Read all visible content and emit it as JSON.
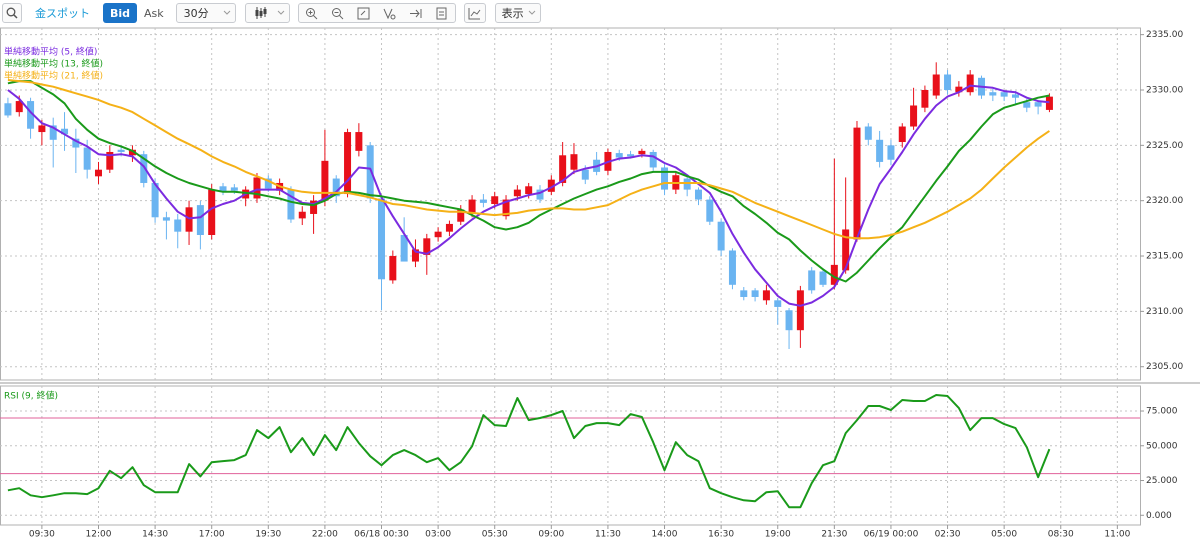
{
  "toolbar": {
    "instrument": "金スポット",
    "bid": "Bid",
    "ask": "Ask",
    "interval": "30分",
    "display": "表示"
  },
  "chart_data": [
    {
      "type": "candlestick",
      "up_color": "#e8101a",
      "down_color": "#6ab4f1",
      "ohlc": {
        "open": [
          2328.8,
          2328.0,
          2329.0,
          2326.2,
          2326.8,
          2326.5,
          2325.6,
          2324.8,
          2322.2,
          2322.8,
          2324.6,
          2324.1,
          2324.2,
          2321.6,
          2318.5,
          2318.3,
          2317.2,
          2319.6,
          2316.9,
          2321.3,
          2321.2,
          2320.2,
          2320.2,
          2322.0,
          2320.9,
          2321.0,
          2318.4,
          2318.8,
          2320.0,
          2322.0,
          2320.6,
          2324.5,
          2325.0,
          2320.2,
          2312.8,
          2316.9,
          2314.5,
          2315.1,
          2316.7,
          2317.2,
          2318.1,
          2318.8,
          2320.1,
          2319.7,
          2318.6,
          2320.4,
          2320.6,
          2321.0,
          2320.8,
          2321.6,
          2322.8,
          2322.8,
          2323.7,
          2322.7,
          2324.3,
          2324.2,
          2324.2,
          2324.4,
          2323.0,
          2321.0,
          2322.0,
          2321.0,
          2320.1,
          2318.1,
          2315.5,
          2311.9,
          2311.9,
          2311.0,
          2311.0,
          2310.1,
          2308.3,
          2313.7,
          2313.6,
          2312.4,
          2313.7,
          2316.5,
          2326.7,
          2325.5,
          2325.0,
          2325.3,
          2326.7,
          2328.4,
          2329.5,
          2331.4,
          2329.8,
          2329.8,
          2331.1,
          2329.8,
          2329.8,
          2329.6,
          2328.9,
          2328.9,
          2328.2
        ],
        "high": [
          2329.3,
          2329.5,
          2329.3,
          2327.3,
          2327.5,
          2328.0,
          2326.5,
          2325.5,
          2323.5,
          2325.0,
          2325.0,
          2325.0,
          2324.5,
          2322.0,
          2319.0,
          2318.8,
          2320.0,
          2320.0,
          2321.5,
          2321.6,
          2321.5,
          2321.3,
          2322.5,
          2322.3,
          2322.0,
          2321.3,
          2319.5,
          2320.5,
          2326.4,
          2322.3,
          2326.5,
          2327.0,
          2325.3,
          2320.5,
          2315.5,
          2318.5,
          2316.5,
          2317.0,
          2317.6,
          2318.2,
          2319.6,
          2320.5,
          2320.6,
          2320.8,
          2320.5,
          2321.4,
          2321.6,
          2321.4,
          2322.3,
          2325.3,
          2325.2,
          2323.2,
          2324.4,
          2324.7,
          2324.6,
          2324.5,
          2324.7,
          2324.6,
          2323.3,
          2322.6,
          2322.3,
          2321.2,
          2320.4,
          2318.3,
          2315.7,
          2312.2,
          2312.1,
          2312.4,
          2311.2,
          2310.3,
          2312.3,
          2314.0,
          2313.9,
          2323.8,
          2322.1,
          2327.2,
          2327.0,
          2326.3,
          2325.5,
          2327.0,
          2330.2,
          2330.4,
          2332.5,
          2331.8,
          2330.8,
          2331.8,
          2331.3,
          2330.1,
          2330.0,
          2329.9,
          2329.2,
          2329.1,
          2329.7
        ],
        "low": [
          2327.5,
          2327.6,
          2325.6,
          2325.0,
          2323.0,
          2324.5,
          2322.5,
          2322.0,
          2321.5,
          2322.5,
          2324.0,
          2323.5,
          2321.2,
          2318.0,
          2316.5,
          2315.7,
          2316.0,
          2315.6,
          2316.5,
          2320.5,
          2320.6,
          2319.5,
          2319.8,
          2320.8,
          2320.5,
          2318.0,
          2317.8,
          2317.0,
          2319.5,
          2319.8,
          2320.3,
          2324.0,
          2319.8,
          2310.1,
          2312.5,
          2314.8,
          2314.0,
          2313.3,
          2316.3,
          2316.8,
          2317.8,
          2318.5,
          2319.4,
          2319.3,
          2318.3,
          2320.0,
          2320.2,
          2319.8,
          2320.5,
          2321.3,
          2322.4,
          2321.5,
          2322.3,
          2322.3,
          2323.6,
          2323.8,
          2323.9,
          2322.7,
          2320.5,
          2320.6,
          2320.4,
          2319.6,
          2317.8,
          2315.0,
          2312.0,
          2311.0,
          2310.9,
          2310.6,
          2308.8,
          2306.6,
          2306.7,
          2311.6,
          2312.2,
          2312.0,
          2313.4,
          2316.3,
          2325.0,
          2323.0,
          2323.2,
          2324.8,
          2326.4,
          2328.0,
          2329.2,
          2329.6,
          2329.4,
          2329.5,
          2329.2,
          2329.0,
          2329.0,
          2328.7,
          2328.0,
          2327.8,
          2328.0
        ],
        "close": [
          2327.7,
          2329.0,
          2326.5,
          2326.8,
          2325.5,
          2326.0,
          2324.8,
          2322.8,
          2322.8,
          2324.4,
          2324.4,
          2324.6,
          2321.6,
          2318.5,
          2318.2,
          2317.2,
          2319.4,
          2316.9,
          2321.0,
          2320.8,
          2320.9,
          2321.0,
          2322.1,
          2321.1,
          2321.6,
          2318.3,
          2319.0,
          2320.0,
          2323.6,
          2320.4,
          2326.2,
          2326.2,
          2320.2,
          2312.9,
          2315.0,
          2314.5,
          2315.6,
          2316.6,
          2317.2,
          2317.9,
          2319.2,
          2320.1,
          2319.8,
          2320.4,
          2320.1,
          2321.0,
          2321.3,
          2320.1,
          2321.9,
          2324.1,
          2324.2,
          2321.9,
          2322.6,
          2324.4,
          2323.9,
          2324.0,
          2324.5,
          2323.0,
          2321.0,
          2322.3,
          2321.0,
          2320.1,
          2318.1,
          2315.5,
          2312.4,
          2311.3,
          2311.3,
          2311.9,
          2310.4,
          2308.3,
          2311.9,
          2311.9,
          2312.4,
          2314.2,
          2317.4,
          2326.6,
          2325.5,
          2323.5,
          2323.7,
          2326.7,
          2328.6,
          2330.0,
          2331.4,
          2330.0,
          2330.3,
          2331.4,
          2329.5,
          2329.5,
          2329.4,
          2329.3,
          2328.4,
          2328.5,
          2329.4
        ]
      },
      "series": [
        {
          "name": "単純移動平均 (5, 終値)",
          "color": "#7b2be0",
          "values": [
            2330.0,
            2329.2,
            2328.0,
            2327.0,
            2326.6,
            2326.0,
            2325.4,
            2324.9,
            2324.2,
            2324.1,
            2324.2,
            2324.0,
            2323.1,
            2321.5,
            2320.2,
            2319.0,
            2318.4,
            2318.5,
            2319.3,
            2319.7,
            2320.0,
            2320.6,
            2321.0,
            2321.0,
            2321.0,
            2320.4,
            2319.8,
            2319.7,
            2320.2,
            2320.8,
            2321.8,
            2323.0,
            2322.9,
            2320.3,
            2318.6,
            2317.0,
            2315.4,
            2315.2,
            2315.8,
            2316.6,
            2317.5,
            2318.3,
            2319.0,
            2319.5,
            2319.9,
            2320.2,
            2320.5,
            2320.7,
            2321.2,
            2321.8,
            2322.6,
            2322.9,
            2323.1,
            2323.5,
            2323.8,
            2323.9,
            2324.1,
            2324.0,
            2323.4,
            2323.0,
            2322.3,
            2321.5,
            2320.7,
            2319.0,
            2317.0,
            2315.3,
            2313.8,
            2312.6,
            2311.4,
            2310.7,
            2310.5,
            2310.8,
            2311.4,
            2312.2,
            2313.9,
            2316.6,
            2319.2,
            2321.5,
            2322.9,
            2324.4,
            2326.0,
            2327.4,
            2328.6,
            2329.4,
            2329.8,
            2330.4,
            2330.3,
            2330.2,
            2329.9,
            2329.8,
            2329.3,
            2329.0,
            2328.9
          ]
        },
        {
          "name": "単純移動平均 (13, 終値)",
          "color": "#1a9a1a",
          "values": [
            2330.6,
            2330.8,
            2330.8,
            2330.2,
            2329.6,
            2328.8,
            2327.4,
            2326.4,
            2325.6,
            2325.2,
            2324.9,
            2324.5,
            2323.8,
            2323.1,
            2322.5,
            2322.0,
            2321.6,
            2321.3,
            2321.0,
            2320.8,
            2320.8,
            2320.7,
            2320.6,
            2320.4,
            2320.2,
            2319.9,
            2319.7,
            2319.6,
            2320.0,
            2320.6,
            2320.8,
            2320.7,
            2320.5,
            2320.4,
            2320.2,
            2320.0,
            2319.9,
            2319.8,
            2319.6,
            2319.4,
            2319.2,
            2318.7,
            2318.2,
            2317.6,
            2317.4,
            2317.6,
            2318.0,
            2318.7,
            2319.2,
            2319.7,
            2320.2,
            2320.6,
            2321.0,
            2321.3,
            2321.7,
            2322.0,
            2322.4,
            2322.6,
            2322.6,
            2322.6,
            2322.2,
            2321.9,
            2321.3,
            2320.8,
            2320.4,
            2319.5,
            2318.8,
            2318.0,
            2317.1,
            2316.5,
            2315.5,
            2314.6,
            2313.8,
            2313.1,
            2312.7,
            2313.5,
            2314.6,
            2315.7,
            2316.7,
            2317.6,
            2319.0,
            2320.4,
            2321.8,
            2323.1,
            2324.5,
            2325.5,
            2326.7,
            2327.8,
            2328.4,
            2328.7,
            2329.0,
            2329.3,
            2329.5
          ]
        },
        {
          "name": "単純移動平均 (21, 終値)",
          "color": "#f5b117",
          "values": [
            2330.9,
            2330.8,
            2330.7,
            2330.5,
            2330.3,
            2330.0,
            2329.7,
            2329.4,
            2329.1,
            2328.7,
            2328.4,
            2328.0,
            2327.4,
            2326.8,
            2326.2,
            2325.6,
            2325.1,
            2324.6,
            2324.0,
            2323.5,
            2323.1,
            2322.6,
            2322.2,
            2321.8,
            2321.3,
            2321.0,
            2320.8,
            2320.7,
            2320.7,
            2320.7,
            2320.7,
            2320.5,
            2320.3,
            2320.0,
            2319.7,
            2319.6,
            2319.4,
            2319.2,
            2319.1,
            2319.0,
            2319.0,
            2318.9,
            2318.8,
            2318.7,
            2318.8,
            2318.9,
            2319.1,
            2319.2,
            2319.3,
            2319.3,
            2319.2,
            2319.2,
            2319.4,
            2319.6,
            2320.1,
            2320.6,
            2321.0,
            2321.3,
            2321.6,
            2321.6,
            2321.6,
            2321.6,
            2321.4,
            2321.1,
            2320.8,
            2320.3,
            2319.8,
            2319.4,
            2319.0,
            2318.6,
            2318.2,
            2317.8,
            2317.4,
            2317.0,
            2316.7,
            2316.6,
            2316.6,
            2316.7,
            2316.9,
            2317.2,
            2317.6,
            2318.0,
            2318.5,
            2319.0,
            2319.6,
            2320.2,
            2321.0,
            2322.0,
            2323.0,
            2323.9,
            2324.8,
            2325.6,
            2326.3
          ]
        }
      ],
      "xlim": [
        -0.7,
        100.0
      ],
      "ylim": [
        2303.8,
        2335.6
      ],
      "yticks": [
        {
          "value": 2305,
          "label": "2305.00"
        },
        {
          "value": 2310,
          "label": "2310.00"
        },
        {
          "value": 2315,
          "label": "2315.00"
        },
        {
          "value": 2320,
          "label": "2320.00"
        },
        {
          "value": 2325,
          "label": "2325.00"
        },
        {
          "value": 2330,
          "label": "2330.00"
        },
        {
          "value": 2335,
          "label": "2335.00"
        }
      ],
      "grid": true
    },
    {
      "type": "line",
      "series": [
        {
          "name": "RSI (9, 終値)",
          "color": "#1a9a1a",
          "values": [
            18.0,
            19.5,
            14.4,
            13.0,
            14.4,
            15.9,
            15.9,
            15.2,
            19.5,
            32.0,
            26.7,
            34.6,
            21.6,
            16.6,
            16.6,
            16.6,
            36.8,
            28.0,
            38.2,
            39.0,
            39.7,
            43.3,
            61.3,
            55.5,
            63.4,
            45.4,
            55.5,
            43.3,
            57.7,
            46.9,
            63.4,
            51.9,
            42.5,
            36.0,
            43.3,
            46.9,
            43.3,
            38.2,
            41.1,
            32.4,
            38.2,
            49.7,
            72.1,
            64.9,
            64.2,
            84.4,
            68.5,
            70.0,
            72.1,
            75.0,
            55.5,
            64.2,
            66.3,
            66.3,
            64.9,
            72.8,
            70.7,
            52.6,
            32.4,
            52.6,
            43.3,
            38.9,
            19.5,
            15.9,
            13.0,
            10.8,
            10.1,
            16.6,
            17.3,
            5.8,
            5.8,
            23.1,
            36.0,
            38.9,
            59.1,
            68.5,
            78.6,
            78.6,
            75.7,
            82.9,
            82.2,
            82.2,
            86.5,
            85.8,
            77.1,
            61.3,
            69.9,
            69.9,
            65.6,
            62.7,
            49.0,
            27.4,
            47.6
          ]
        }
      ],
      "levels": [
        70,
        30
      ],
      "level_color": "#e0609a",
      "xlim": [
        -0.7,
        100.0
      ],
      "xticks": [
        {
          "value": 3,
          "label": "09:30"
        },
        {
          "value": 8,
          "label": "12:00"
        },
        {
          "value": 13,
          "label": "14:30"
        },
        {
          "value": 18,
          "label": "17:00"
        },
        {
          "value": 23,
          "label": "19:30"
        },
        {
          "value": 28,
          "label": "22:00"
        },
        {
          "value": 33,
          "label": "06/18 00:30"
        },
        {
          "value": 38,
          "label": "03:00"
        },
        {
          "value": 43,
          "label": "05:30"
        },
        {
          "value": 48,
          "label": "09:00"
        },
        {
          "value": 53,
          "label": "11:30"
        },
        {
          "value": 58,
          "label": "14:00"
        },
        {
          "value": 63,
          "label": "16:30"
        },
        {
          "value": 68,
          "label": "19:00"
        },
        {
          "value": 73,
          "label": "21:30"
        },
        {
          "value": 78,
          "label": "06/19 00:00"
        },
        {
          "value": 83,
          "label": "02:30"
        },
        {
          "value": 88,
          "label": "05:00"
        },
        {
          "value": 93,
          "label": "08:30"
        },
        {
          "value": 98,
          "label": "11:00"
        }
      ],
      "ylim": [
        -7,
        93
      ],
      "yticks": [
        {
          "value": 0,
          "label": "0.000"
        },
        {
          "value": 25,
          "label": "25.000"
        },
        {
          "value": 50,
          "label": "50.000"
        },
        {
          "value": 75,
          "label": "75.000"
        }
      ],
      "grid": true
    }
  ]
}
